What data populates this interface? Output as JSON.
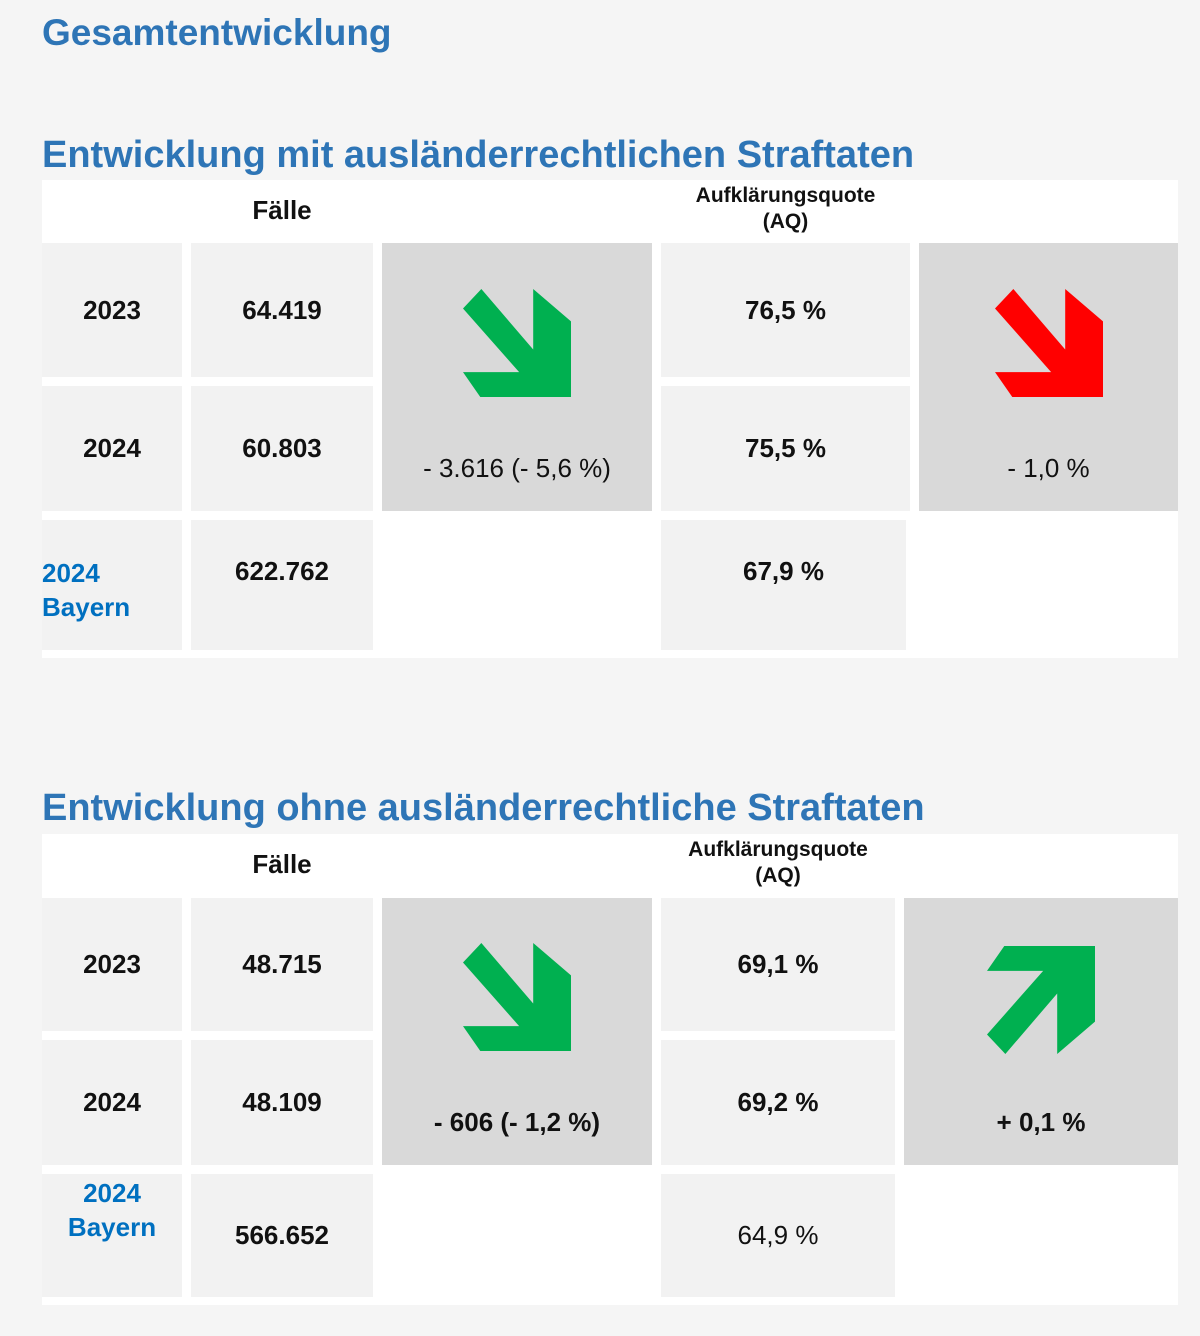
{
  "title": "Gesamtentwicklung",
  "colors": {
    "down_good": "#00b050",
    "down_bad": "#ff0000",
    "up_good": "#00b050"
  },
  "sections": [
    {
      "heading": "Entwicklung mit ausländerrechtlichen Straftaten",
      "cases_header": "Fälle",
      "aq_header_line1": "Aufklärungsquote",
      "aq_header_line2": "(AQ)",
      "rows": [
        {
          "year": "2023",
          "cases": "64.419",
          "aq": "76,5 %"
        },
        {
          "year": "2024",
          "cases": "60.803",
          "aq": "75,5 %"
        }
      ],
      "bayern": {
        "year": "2024",
        "label": "Bayern",
        "cases": "622.762",
        "aq": "67,9 %"
      },
      "cases_change": "- 3.616 (- 5,6 %)",
      "cases_arrow": "arrow-down-right-green",
      "aq_change": "- 1,0 %",
      "aq_arrow": "arrow-down-right-red"
    },
    {
      "heading": "Entwicklung ohne ausländerrechtliche Straftaten",
      "cases_header": "Fälle",
      "aq_header_line1": "Aufklärungsquote",
      "aq_header_line2": "(AQ)",
      "rows": [
        {
          "year": "2023",
          "cases": "48.715",
          "aq": "69,1 %"
        },
        {
          "year": "2024",
          "cases": "48.109",
          "aq": "69,2 %"
        }
      ],
      "bayern": {
        "year": "2024",
        "label": "Bayern",
        "cases": "566.652",
        "aq": "64,9 %"
      },
      "cases_change": "- 606 (- 1,2 %)",
      "cases_arrow": "arrow-down-right-green",
      "aq_change": "+ 0,1 %",
      "aq_arrow": "arrow-up-right-green"
    }
  ]
}
